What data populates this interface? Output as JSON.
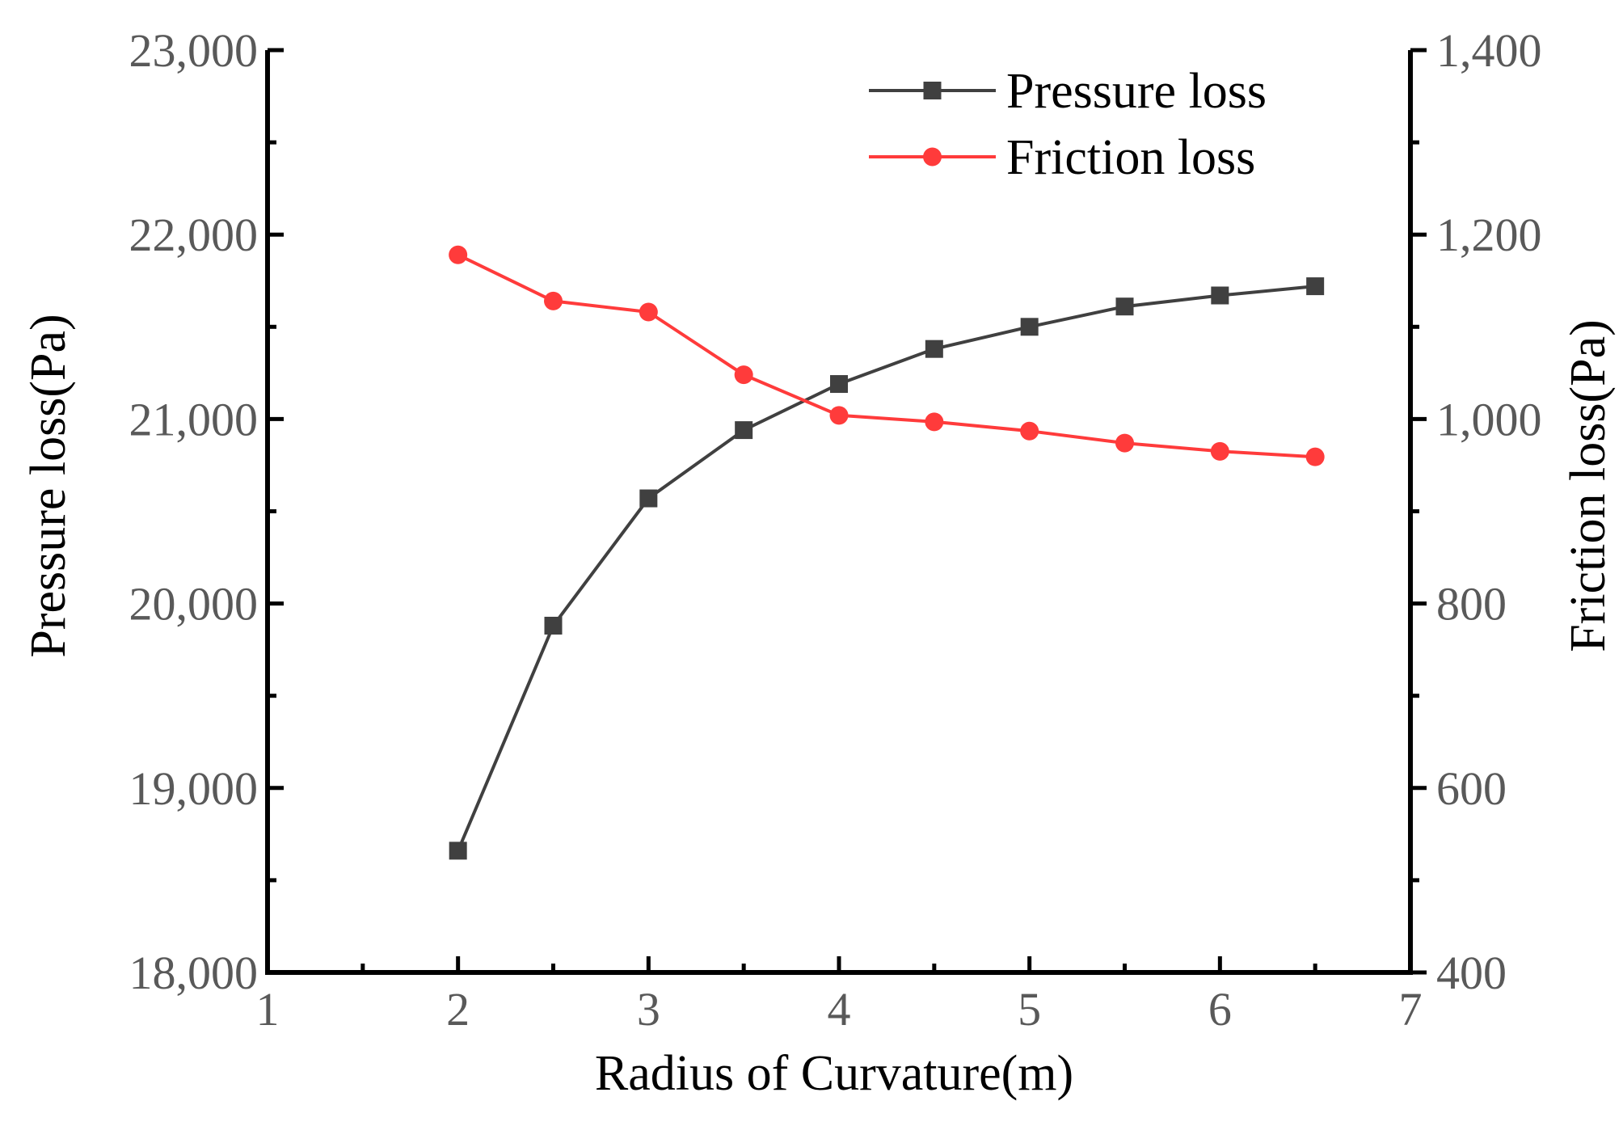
{
  "chart_data": {
    "type": "line",
    "xlabel": "Radius of Curvature(m)",
    "ylabel_left": "Pressure loss(Pa)",
    "ylabel_right": "Friction loss(Pa)",
    "xlim": [
      1,
      7
    ],
    "ylim_left": [
      18000,
      23000
    ],
    "ylim_right": [
      400,
      1400
    ],
    "x_ticks": [
      "1",
      "2",
      "3",
      "4",
      "5",
      "6",
      "7"
    ],
    "y_left_ticks": [
      "18,000",
      "19,000",
      "20,000",
      "21,000",
      "22,000",
      "23,000"
    ],
    "y_right_ticks": [
      "400",
      "600",
      "800",
      "1,000",
      "1,200",
      "1,400"
    ],
    "legend_position": "top-right",
    "grid": false,
    "x": [
      2,
      2.5,
      3,
      3.5,
      4,
      4.5,
      5,
      5.5,
      6,
      6.5
    ],
    "series": [
      {
        "name": "Pressure loss",
        "axis": "left",
        "marker": "square",
        "color": "#404040",
        "values": [
          18660,
          19880,
          20570,
          20940,
          21190,
          21380,
          21500,
          21610,
          21670,
          21720
        ]
      },
      {
        "name": "Friction loss",
        "axis": "right",
        "marker": "circle",
        "color": "#ff3b3b",
        "values": [
          1178,
          1128,
          1116,
          1048,
          1004,
          997,
          987,
          974,
          965,
          959
        ]
      }
    ]
  }
}
